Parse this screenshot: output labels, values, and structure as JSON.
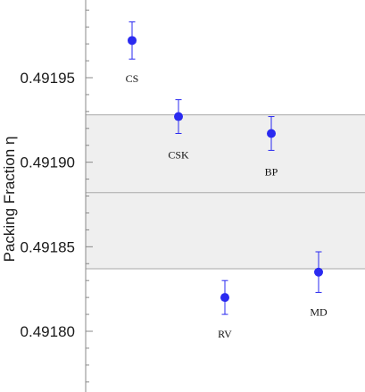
{
  "chart_data": {
    "type": "scatter",
    "title": "",
    "xlabel": "",
    "ylabel": "Packing Fraction η",
    "ylim": [
      0.491765,
      0.492
    ],
    "y_ticks": [
      {
        "value": 0.4918,
        "label": "0.49180"
      },
      {
        "value": 0.49185,
        "label": "0.49185"
      },
      {
        "value": 0.4919,
        "label": "0.49190"
      },
      {
        "value": 0.49195,
        "label": "0.49195"
      }
    ],
    "band": {
      "lower": 0.491837,
      "upper": 0.491928,
      "center": 0.491882
    },
    "points": [
      {
        "label": "CS",
        "y": 0.491972,
        "err": 1.1e-05
      },
      {
        "label": "CSK",
        "y": 0.491927,
        "err": 1e-05
      },
      {
        "label": "BP",
        "y": 0.491917,
        "err": 1e-05
      },
      {
        "label": "RV",
        "y": 0.49182,
        "err": 1e-05
      },
      {
        "label": "MD",
        "y": 0.491835,
        "err": 1.2e-05
      }
    ],
    "grid": false,
    "colors": {
      "points": "#2a2af0",
      "band_fill": "#efefef",
      "band_line": "#aaaaaa",
      "axis": "#888888"
    }
  }
}
